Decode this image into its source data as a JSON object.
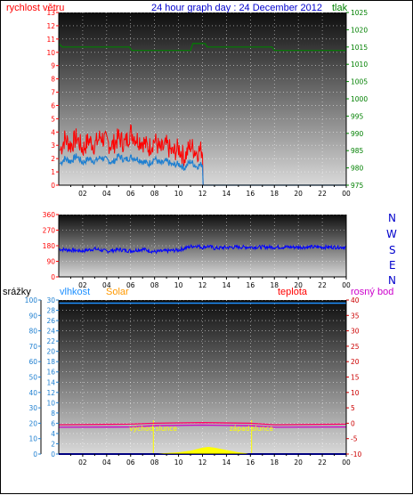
{
  "header": {
    "wind_label": "rychlost větru",
    "title": "24 hour graph day : 24 December 2012",
    "pressure_label": "tlak"
  },
  "direction_labels": [
    "N",
    "W",
    "S",
    "E",
    "N"
  ],
  "lower_header": {
    "rain_label": "srážky",
    "humidity_label": "vlhkost",
    "solar_label": "Solar",
    "temp_label": "teplota",
    "dewpoint_label": "rosný bod"
  },
  "sun_labels": {
    "sunrise": "východ slunce",
    "sunset": "západ slunce"
  },
  "colors": {
    "wind": "#ff0000",
    "gust": "#ff0000",
    "wind_avg": "#1e7fd0",
    "pressure": "#008000",
    "direction": "#0000ff",
    "humidity": "#1e90ff",
    "solar": "#ffff00",
    "sun_marker": "#ffff00",
    "temperature": "#ff0066",
    "dewpoint": "#cc00cc",
    "rain": "#0000ff"
  },
  "chart_data": [
    {
      "type": "line",
      "panel": "wind-pressure",
      "x_ticks": [
        "02",
        "04",
        "06",
        "08",
        "10",
        "12",
        "14",
        "16",
        "18",
        "20",
        "22",
        "00"
      ],
      "xlim": [
        0,
        24
      ],
      "y_left": {
        "label": "rychlost větru",
        "ylim": [
          0,
          13
        ],
        "ticks": [
          "0",
          "1",
          "2",
          "3",
          "4",
          "5",
          "6",
          "7",
          "8",
          "9",
          "10",
          "11",
          "12",
          "13"
        ]
      },
      "y_right": {
        "label": "tlak",
        "ylim": [
          975,
          1025
        ],
        "ticks": [
          "975",
          "980",
          "985",
          "990",
          "995",
          "1000",
          "1005",
          "1010",
          "1015",
          "1020",
          "1025"
        ]
      },
      "series": [
        {
          "key": "gust",
          "axis": "left",
          "points": [
            [
              0.1,
              2.6
            ],
            [
              0.5,
              3.5
            ],
            [
              1,
              3.0
            ],
            [
              1.5,
              3.6
            ],
            [
              2,
              2.7
            ],
            [
              2.5,
              3.4
            ],
            [
              3,
              3.0
            ],
            [
              3.5,
              3.7
            ],
            [
              4,
              3.2
            ],
            [
              4.5,
              3.0
            ],
            [
              5,
              3.6
            ],
            [
              5.5,
              3.1
            ],
            [
              6,
              4.0
            ],
            [
              6.5,
              3.5
            ],
            [
              7,
              3.3
            ],
            [
              7.5,
              2.8
            ],
            [
              8,
              3.4
            ],
            [
              8.5,
              2.6
            ],
            [
              9,
              3.0
            ],
            [
              9.5,
              2.4
            ],
            [
              10,
              2.8
            ],
            [
              10.5,
              2.1
            ],
            [
              11,
              3.0
            ],
            [
              11.5,
              2.5
            ],
            [
              12.0,
              2.7
            ],
            [
              12.05,
              0
            ],
            [
              24,
              0
            ]
          ]
        },
        {
          "key": "wind_avg",
          "axis": "left",
          "points": [
            [
              0.1,
              1.6
            ],
            [
              0.5,
              2.0
            ],
            [
              1,
              1.8
            ],
            [
              1.5,
              2.2
            ],
            [
              2,
              1.7
            ],
            [
              2.5,
              2.0
            ],
            [
              3,
              1.8
            ],
            [
              3.5,
              2.1
            ],
            [
              4,
              1.9
            ],
            [
              4.5,
              1.7
            ],
            [
              5,
              2.2
            ],
            [
              5.5,
              1.9
            ],
            [
              6,
              2.1
            ],
            [
              6.5,
              2.0
            ],
            [
              7,
              1.8
            ],
            [
              7.5,
              1.6
            ],
            [
              8,
              2.0
            ],
            [
              8.5,
              1.6
            ],
            [
              9,
              1.8
            ],
            [
              9.5,
              1.5
            ],
            [
              10,
              1.6
            ],
            [
              10.5,
              1.3
            ],
            [
              11,
              1.8
            ],
            [
              11.5,
              1.4
            ],
            [
              12.0,
              1.6
            ],
            [
              12.05,
              0
            ],
            [
              24,
              0
            ]
          ]
        },
        {
          "key": "pressure",
          "axis": "right",
          "points": [
            [
              0,
              1016
            ],
            [
              0.3,
              1015
            ],
            [
              5.9,
              1015
            ],
            [
              6.1,
              1014
            ],
            [
              11,
              1014
            ],
            [
              11.2,
              1016
            ],
            [
              12.2,
              1016
            ],
            [
              12.4,
              1015
            ],
            [
              17.8,
              1015
            ],
            [
              18,
              1014
            ],
            [
              24,
              1014
            ]
          ]
        }
      ]
    },
    {
      "type": "line",
      "panel": "wind-direction",
      "x_ticks": [
        "02",
        "04",
        "06",
        "08",
        "10",
        "12",
        "14",
        "16",
        "18",
        "20",
        "22",
        "00"
      ],
      "xlim": [
        0,
        24
      ],
      "y_left": {
        "ylim": [
          0,
          360
        ],
        "ticks": [
          "0",
          "90",
          "180",
          "270",
          "360"
        ]
      },
      "y_right": {
        "ticks": [
          "N",
          "W",
          "S",
          "E",
          "N"
        ]
      },
      "series": [
        {
          "key": "direction",
          "points": [
            [
              0,
              160
            ],
            [
              1,
              155
            ],
            [
              2,
              150
            ],
            [
              3,
              162
            ],
            [
              4,
              148
            ],
            [
              5,
              158
            ],
            [
              6,
              150
            ],
            [
              7,
              160
            ],
            [
              8,
              145
            ],
            [
              9,
              150
            ],
            [
              10,
              155
            ],
            [
              10.5,
              165
            ],
            [
              11,
              175
            ],
            [
              11.5,
              180
            ],
            [
              12,
              170
            ],
            [
              12.5,
              178
            ],
            [
              13,
              165
            ],
            [
              14,
              170
            ],
            [
              15,
              172
            ],
            [
              24,
              172
            ]
          ]
        }
      ]
    },
    {
      "type": "line",
      "panel": "rain-humidity-temperature",
      "x_ticks": [
        "02",
        "04",
        "06",
        "08",
        "10",
        "12",
        "14",
        "16",
        "18",
        "20",
        "22",
        "00"
      ],
      "xlim": [
        0,
        24
      ],
      "y_left_outer": {
        "label": "srážky",
        "ylim": [
          0,
          100
        ],
        "ticks": [
          "0",
          "10",
          "20",
          "30",
          "40",
          "50",
          "60",
          "70",
          "80",
          "90",
          "100"
        ]
      },
      "y_left_inner": {
        "label": "vlhkost",
        "ylim": [
          0,
          30
        ],
        "ticks": [
          "0",
          "2",
          "4",
          "6",
          "8",
          "10",
          "12",
          "14",
          "16",
          "18",
          "20",
          "22",
          "24",
          "26",
          "28",
          "30"
        ]
      },
      "y_right": {
        "label": "teplota",
        "ylim": [
          -10,
          40
        ],
        "ticks": [
          "-10",
          "-5",
          "0",
          "5",
          "10",
          "15",
          "20",
          "25",
          "30",
          "35",
          "40"
        ]
      },
      "markers": {
        "sunrise_hour": 7.9,
        "sunset_hour": 16.1
      },
      "series": [
        {
          "key": "humidity",
          "axis": "left_outer",
          "points": [
            [
              0,
              98
            ],
            [
              24,
              98
            ]
          ]
        },
        {
          "key": "temperature",
          "axis": "right",
          "points": [
            [
              0,
              -0.5
            ],
            [
              6,
              -0.3
            ],
            [
              8,
              0
            ],
            [
              12,
              0.2
            ],
            [
              16,
              0
            ],
            [
              18,
              -0.5
            ],
            [
              24,
              -0.3
            ]
          ]
        },
        {
          "key": "dewpoint",
          "axis": "right",
          "points": [
            [
              0,
              -1.3
            ],
            [
              6,
              -1.2
            ],
            [
              8,
              -0.8
            ],
            [
              12,
              -0.6
            ],
            [
              16,
              -0.8
            ],
            [
              18,
              -1.3
            ],
            [
              24,
              -1.2
            ]
          ]
        },
        {
          "key": "rain",
          "axis": "left_outer",
          "points": [
            [
              0,
              0
            ],
            [
              24,
              0
            ]
          ]
        },
        {
          "key": "solar",
          "axis": "left_outer",
          "fill": true,
          "points": [
            [
              8,
              0
            ],
            [
              9,
              0.5
            ],
            [
              10,
              1
            ],
            [
              11,
              2
            ],
            [
              12,
              4
            ],
            [
              12.5,
              4.5
            ],
            [
              13,
              4
            ],
            [
              14,
              2.5
            ],
            [
              15,
              1
            ],
            [
              16,
              0
            ]
          ]
        }
      ]
    }
  ]
}
